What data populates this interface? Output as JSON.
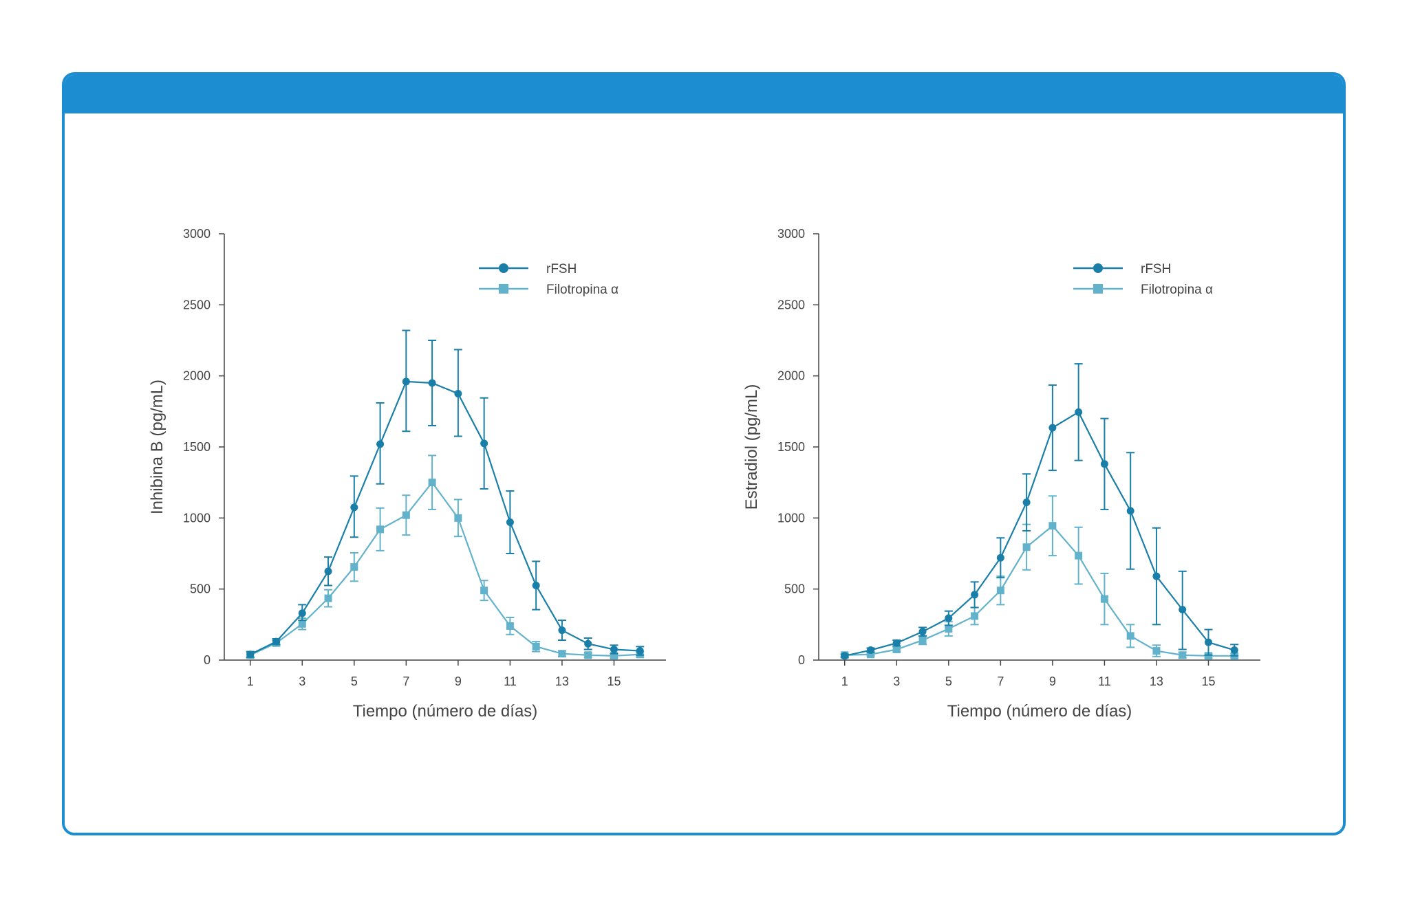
{
  "colors": {
    "frame": "#1b8dd0",
    "rfsh": "#1a7fa8",
    "filotropina": "#62b2cc",
    "axis": "#444444"
  },
  "chart_data": [
    {
      "type": "line",
      "title": "",
      "xlabel": "Tiempo (número de días)",
      "ylabel": "Inhibina B (pg/mL)",
      "xlim": [
        0,
        17
      ],
      "ylim": [
        0,
        3000
      ],
      "xticks": [
        1,
        3,
        5,
        7,
        9,
        11,
        13,
        15
      ],
      "yticks": [
        0,
        500,
        1000,
        1500,
        2000,
        2500,
        3000
      ],
      "legend_position": "top-right",
      "grid": false,
      "series": [
        {
          "name": "rFSH",
          "marker": "circle",
          "x": [
            1,
            2,
            3,
            4,
            5,
            6,
            7,
            8,
            9,
            10,
            11,
            12,
            13,
            14,
            15,
            16
          ],
          "y": [
            40,
            130,
            330,
            625,
            1075,
            1520,
            1960,
            1950,
            1875,
            1525,
            970,
            525,
            210,
            115,
            75,
            65
          ],
          "err_low": [
            20,
            20,
            50,
            100,
            210,
            280,
            350,
            300,
            300,
            320,
            220,
            170,
            70,
            40,
            30,
            30
          ],
          "err_high": [
            20,
            20,
            60,
            100,
            220,
            290,
            360,
            300,
            310,
            320,
            220,
            170,
            70,
            40,
            30,
            30
          ]
        },
        {
          "name": "Filotropina α",
          "marker": "square",
          "x": [
            1,
            2,
            3,
            4,
            5,
            6,
            7,
            8,
            9,
            10,
            11,
            12,
            13,
            14,
            15,
            16
          ],
          "y": [
            35,
            120,
            255,
            435,
            655,
            920,
            1020,
            1250,
            1000,
            490,
            240,
            95,
            45,
            35,
            30,
            40
          ],
          "err_low": [
            20,
            20,
            40,
            60,
            100,
            150,
            140,
            190,
            130,
            70,
            60,
            35,
            20,
            15,
            15,
            20
          ],
          "err_high": [
            20,
            20,
            40,
            60,
            100,
            150,
            140,
            190,
            130,
            70,
            60,
            35,
            20,
            15,
            15,
            20
          ]
        }
      ]
    },
    {
      "type": "line",
      "title": "",
      "xlabel": "Tiempo (número de días)",
      "ylabel": "Estradiol (pg/mL)",
      "xlim": [
        0,
        17
      ],
      "ylim": [
        0,
        3000
      ],
      "xticks": [
        1,
        3,
        5,
        7,
        9,
        11,
        13,
        15
      ],
      "yticks": [
        0,
        500,
        1000,
        1500,
        2000,
        2500,
        3000
      ],
      "legend_position": "top-right",
      "grid": false,
      "series": [
        {
          "name": "rFSH",
          "marker": "circle",
          "x": [
            1,
            2,
            3,
            4,
            5,
            6,
            7,
            8,
            9,
            10,
            11,
            12,
            13,
            14,
            15,
            16
          ],
          "y": [
            30,
            70,
            120,
            200,
            295,
            460,
            720,
            1110,
            1635,
            1745,
            1380,
            1050,
            590,
            355,
            125,
            70
          ],
          "err_low": [
            10,
            15,
            20,
            30,
            50,
            90,
            140,
            200,
            300,
            340,
            320,
            410,
            340,
            280,
            90,
            40
          ],
          "err_high": [
            10,
            15,
            20,
            30,
            50,
            90,
            140,
            200,
            300,
            340,
            320,
            410,
            340,
            270,
            90,
            40
          ]
        },
        {
          "name": "Filotropina α",
          "marker": "square",
          "x": [
            1,
            2,
            3,
            4,
            5,
            6,
            7,
            8,
            9,
            10,
            11,
            12,
            13,
            14,
            15,
            16
          ],
          "y": [
            35,
            40,
            75,
            140,
            220,
            310,
            490,
            795,
            945,
            735,
            430,
            170,
            65,
            35,
            30,
            30
          ],
          "err_low": [
            10,
            10,
            15,
            30,
            50,
            60,
            100,
            160,
            210,
            200,
            180,
            80,
            40,
            20,
            15,
            15
          ],
          "err_high": [
            10,
            10,
            15,
            30,
            50,
            60,
            100,
            160,
            210,
            200,
            180,
            80,
            40,
            20,
            15,
            15
          ]
        }
      ]
    }
  ]
}
